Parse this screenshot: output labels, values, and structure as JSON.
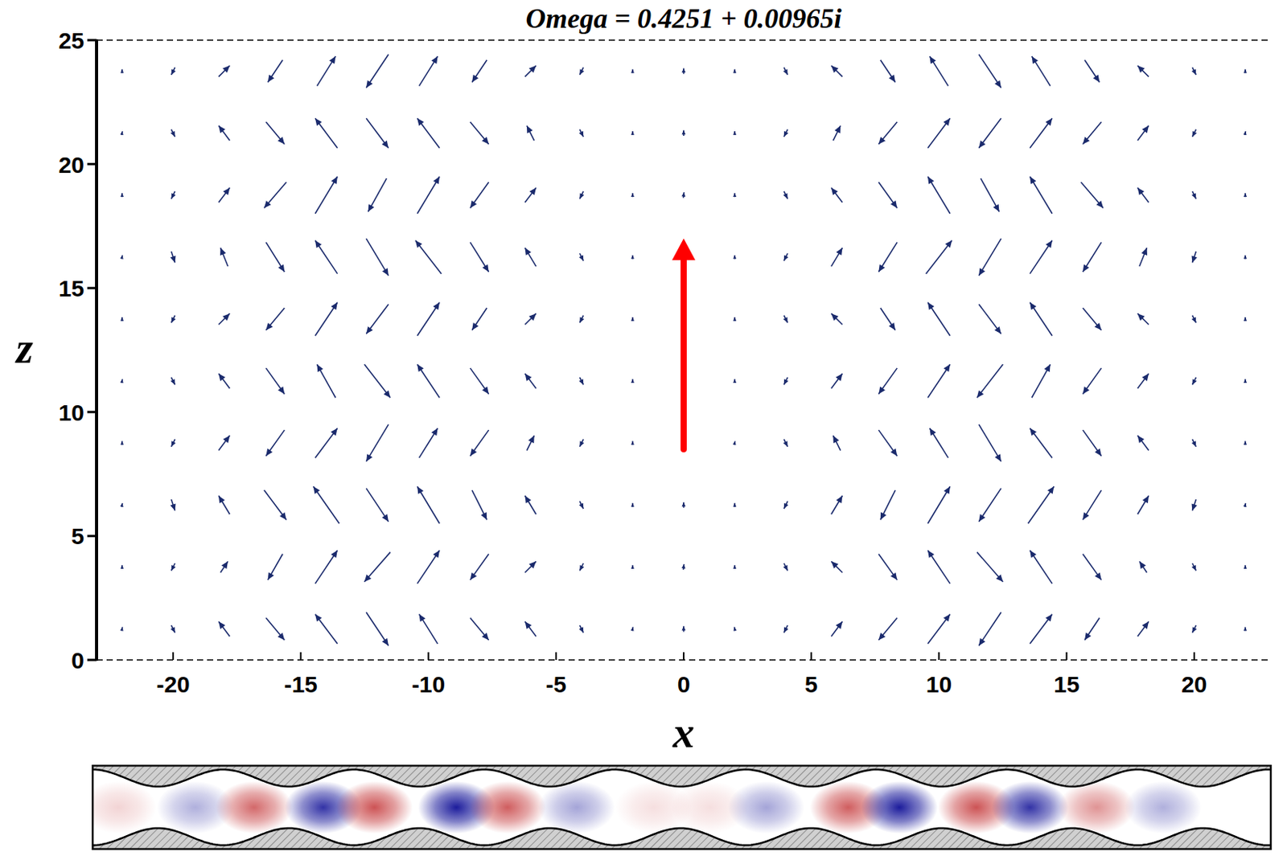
{
  "chart_data": {
    "type": "quiver",
    "title": "Omega = 0.4251 + 0.00965i",
    "x_label": "x",
    "y_label": "z",
    "xlim": [
      -23,
      23
    ],
    "ylim": [
      0,
      25
    ],
    "xticks": [
      -20,
      -15,
      -10,
      -5,
      0,
      5,
      10,
      15,
      20
    ],
    "yticks": [
      0,
      5,
      10,
      15,
      20,
      25
    ],
    "color": "#1a2a6c",
    "x": [
      -22,
      -20,
      -18,
      -16,
      -14,
      -12,
      -10,
      -8,
      -6,
      -4,
      -2,
      0,
      2,
      4,
      6,
      8,
      10,
      12,
      14,
      16,
      18,
      20,
      22
    ],
    "z": [
      1.25,
      3.75,
      6.25,
      8.75,
      11.25,
      13.75,
      16.25,
      18.75,
      21.25,
      23.75
    ],
    "u": [
      [
        0.02,
        0.1,
        -0.3,
        0.5,
        -0.6,
        0.6,
        -0.5,
        0.5,
        -0.3,
        0.1,
        0.02,
        0,
        -0.02,
        -0.1,
        0.3,
        -0.5,
        0.6,
        -0.6,
        0.6,
        -0.4,
        0.3,
        -0.1,
        0
      ],
      [
        0,
        -0.1,
        0.2,
        -0.4,
        0.6,
        -0.7,
        0.6,
        -0.5,
        0.3,
        -0.1,
        0,
        0.02,
        0,
        0.1,
        -0.3,
        0.5,
        -0.6,
        0.7,
        -0.6,
        0.5,
        -0.2,
        0.1,
        0
      ],
      [
        0.02,
        0.1,
        -0.3,
        0.6,
        -0.7,
        0.6,
        -0.6,
        0.4,
        -0.3,
        0.1,
        0,
        0,
        0,
        -0.1,
        0.3,
        -0.4,
        0.6,
        -0.6,
        0.7,
        -0.5,
        0.3,
        -0.1,
        0.02
      ],
      [
        0,
        -0.1,
        0.3,
        -0.5,
        0.6,
        -0.6,
        0.5,
        -0.5,
        0.2,
        -0.1,
        0,
        0,
        0.02,
        0.1,
        -0.2,
        0.5,
        -0.5,
        0.6,
        -0.6,
        0.5,
        -0.3,
        0.1,
        0
      ],
      [
        0.02,
        0.1,
        -0.3,
        0.5,
        -0.5,
        0.7,
        -0.6,
        0.5,
        -0.3,
        0.1,
        0,
        0.02,
        0,
        -0.1,
        0.3,
        -0.5,
        0.6,
        -0.7,
        0.5,
        -0.5,
        0.3,
        -0.1,
        0
      ],
      [
        0,
        -0.1,
        0.3,
        -0.5,
        0.6,
        -0.6,
        0.6,
        -0.4,
        0.3,
        -0.1,
        0,
        0,
        0,
        0.1,
        -0.3,
        0.4,
        -0.6,
        0.6,
        -0.6,
        0.5,
        -0.3,
        0.1,
        0
      ],
      [
        0.02,
        0.1,
        -0.2,
        0.5,
        -0.6,
        0.6,
        -0.7,
        0.5,
        -0.3,
        0.1,
        0,
        0,
        0,
        -0.1,
        0.3,
        -0.5,
        0.7,
        -0.6,
        0.6,
        -0.5,
        0.2,
        -0.1,
        0
      ],
      [
        0,
        -0.1,
        0.3,
        -0.6,
        0.6,
        -0.5,
        0.6,
        -0.5,
        0.3,
        -0.1,
        0,
        0.02,
        0,
        0.1,
        -0.3,
        0.5,
        -0.6,
        0.5,
        -0.6,
        0.6,
        -0.3,
        0.1,
        0
      ],
      [
        0.02,
        0.1,
        -0.3,
        0.5,
        -0.6,
        0.6,
        -0.6,
        0.5,
        -0.2,
        0.1,
        0,
        0,
        0,
        -0.1,
        0.2,
        -0.5,
        0.6,
        -0.6,
        0.6,
        -0.5,
        0.3,
        -0.1,
        0.02
      ],
      [
        0,
        -0.1,
        0.3,
        -0.4,
        0.5,
        -0.6,
        0.5,
        -0.4,
        0.3,
        -0.1,
        0,
        0,
        0,
        0.1,
        -0.3,
        0.4,
        -0.5,
        0.6,
        -0.5,
        0.4,
        -0.3,
        0.1,
        0
      ]
    ],
    "w": [
      [
        0.1,
        -0.2,
        0.4,
        -0.6,
        0.8,
        -0.9,
        0.8,
        -0.6,
        0.4,
        -0.2,
        0.1,
        0.15,
        0.1,
        -0.2,
        0.4,
        -0.6,
        0.8,
        -0.9,
        0.8,
        -0.6,
        0.4,
        -0.2,
        0.1
      ],
      [
        0.1,
        -0.2,
        0.3,
        -0.7,
        0.9,
        -0.8,
        0.9,
        -0.7,
        0.3,
        -0.2,
        0.1,
        0.15,
        0.1,
        -0.2,
        0.3,
        -0.7,
        0.9,
        -0.8,
        0.9,
        -0.7,
        0.3,
        -0.2,
        0.1
      ],
      [
        0.1,
        -0.3,
        0.5,
        -0.8,
        1.0,
        -0.9,
        1.0,
        -0.8,
        0.5,
        -0.2,
        0.1,
        0.15,
        0.1,
        -0.2,
        0.5,
        -0.8,
        1.0,
        -0.9,
        1.0,
        -0.8,
        0.5,
        -0.3,
        0.1
      ],
      [
        0.1,
        -0.2,
        0.4,
        -0.7,
        0.8,
        -1.0,
        0.8,
        -0.7,
        0.4,
        -0.2,
        0.1,
        0.15,
        0.1,
        -0.2,
        0.4,
        -0.7,
        0.8,
        -1.0,
        0.8,
        -0.7,
        0.4,
        -0.2,
        0.1
      ],
      [
        0.1,
        -0.2,
        0.4,
        -0.7,
        0.9,
        -0.9,
        0.9,
        -0.7,
        0.4,
        -0.2,
        0.1,
        0.15,
        0.1,
        -0.2,
        0.4,
        -0.7,
        0.9,
        -0.9,
        0.9,
        -0.7,
        0.4,
        -0.2,
        0.1
      ],
      [
        0.1,
        -0.2,
        0.3,
        -0.6,
        0.9,
        -0.8,
        0.9,
        -0.6,
        0.3,
        -0.2,
        0.1,
        0.15,
        0.1,
        -0.2,
        0.3,
        -0.6,
        0.9,
        -0.8,
        0.9,
        -0.6,
        0.3,
        -0.2,
        0.1
      ],
      [
        0.1,
        -0.3,
        0.5,
        -0.8,
        0.9,
        -1.0,
        0.9,
        -0.8,
        0.5,
        -0.2,
        0.1,
        0.15,
        0.1,
        -0.2,
        0.5,
        -0.8,
        0.9,
        -1.0,
        0.9,
        -0.8,
        0.5,
        -0.3,
        0.1
      ],
      [
        0.1,
        -0.2,
        0.4,
        -0.7,
        1.0,
        -0.9,
        1.0,
        -0.7,
        0.4,
        -0.2,
        0.1,
        0.15,
        0.1,
        -0.2,
        0.4,
        -0.7,
        1.0,
        -0.9,
        1.0,
        -0.7,
        0.4,
        -0.2,
        0.1
      ],
      [
        0.1,
        -0.2,
        0.4,
        -0.6,
        0.8,
        -0.8,
        0.8,
        -0.6,
        0.4,
        -0.2,
        0.1,
        0.15,
        0.1,
        -0.2,
        0.4,
        -0.6,
        0.8,
        -0.8,
        0.8,
        -0.6,
        0.4,
        -0.2,
        0.1
      ],
      [
        0.1,
        -0.2,
        0.3,
        -0.6,
        0.8,
        -0.9,
        0.8,
        -0.6,
        0.3,
        -0.2,
        0.1,
        0.15,
        0.1,
        -0.2,
        0.3,
        -0.6,
        0.8,
        -0.9,
        0.8,
        -0.6,
        0.3,
        -0.2,
        0.1
      ]
    ],
    "arrow": {
      "x": 0,
      "z": [
        8.5,
        17
      ],
      "color": "#ff0000"
    },
    "strip": {
      "x": [
        -22,
        -19,
        -16.7,
        -14,
        -12,
        -8.8,
        -6.8,
        -4.1,
        -1.1,
        1.1,
        3.3,
        6.5,
        8.5,
        11.5,
        13.6,
        16.2,
        18.8
      ],
      "values": [
        0.2,
        -0.35,
        0.7,
        -0.9,
        0.8,
        -1,
        0.75,
        -0.4,
        0.15,
        0.15,
        -0.4,
        0.75,
        -1,
        0.8,
        -0.9,
        0.5,
        -0.35
      ],
      "color_range": [
        -1,
        1
      ],
      "colors": [
        "#1c1c9c",
        "#c0282a"
      ]
    }
  }
}
